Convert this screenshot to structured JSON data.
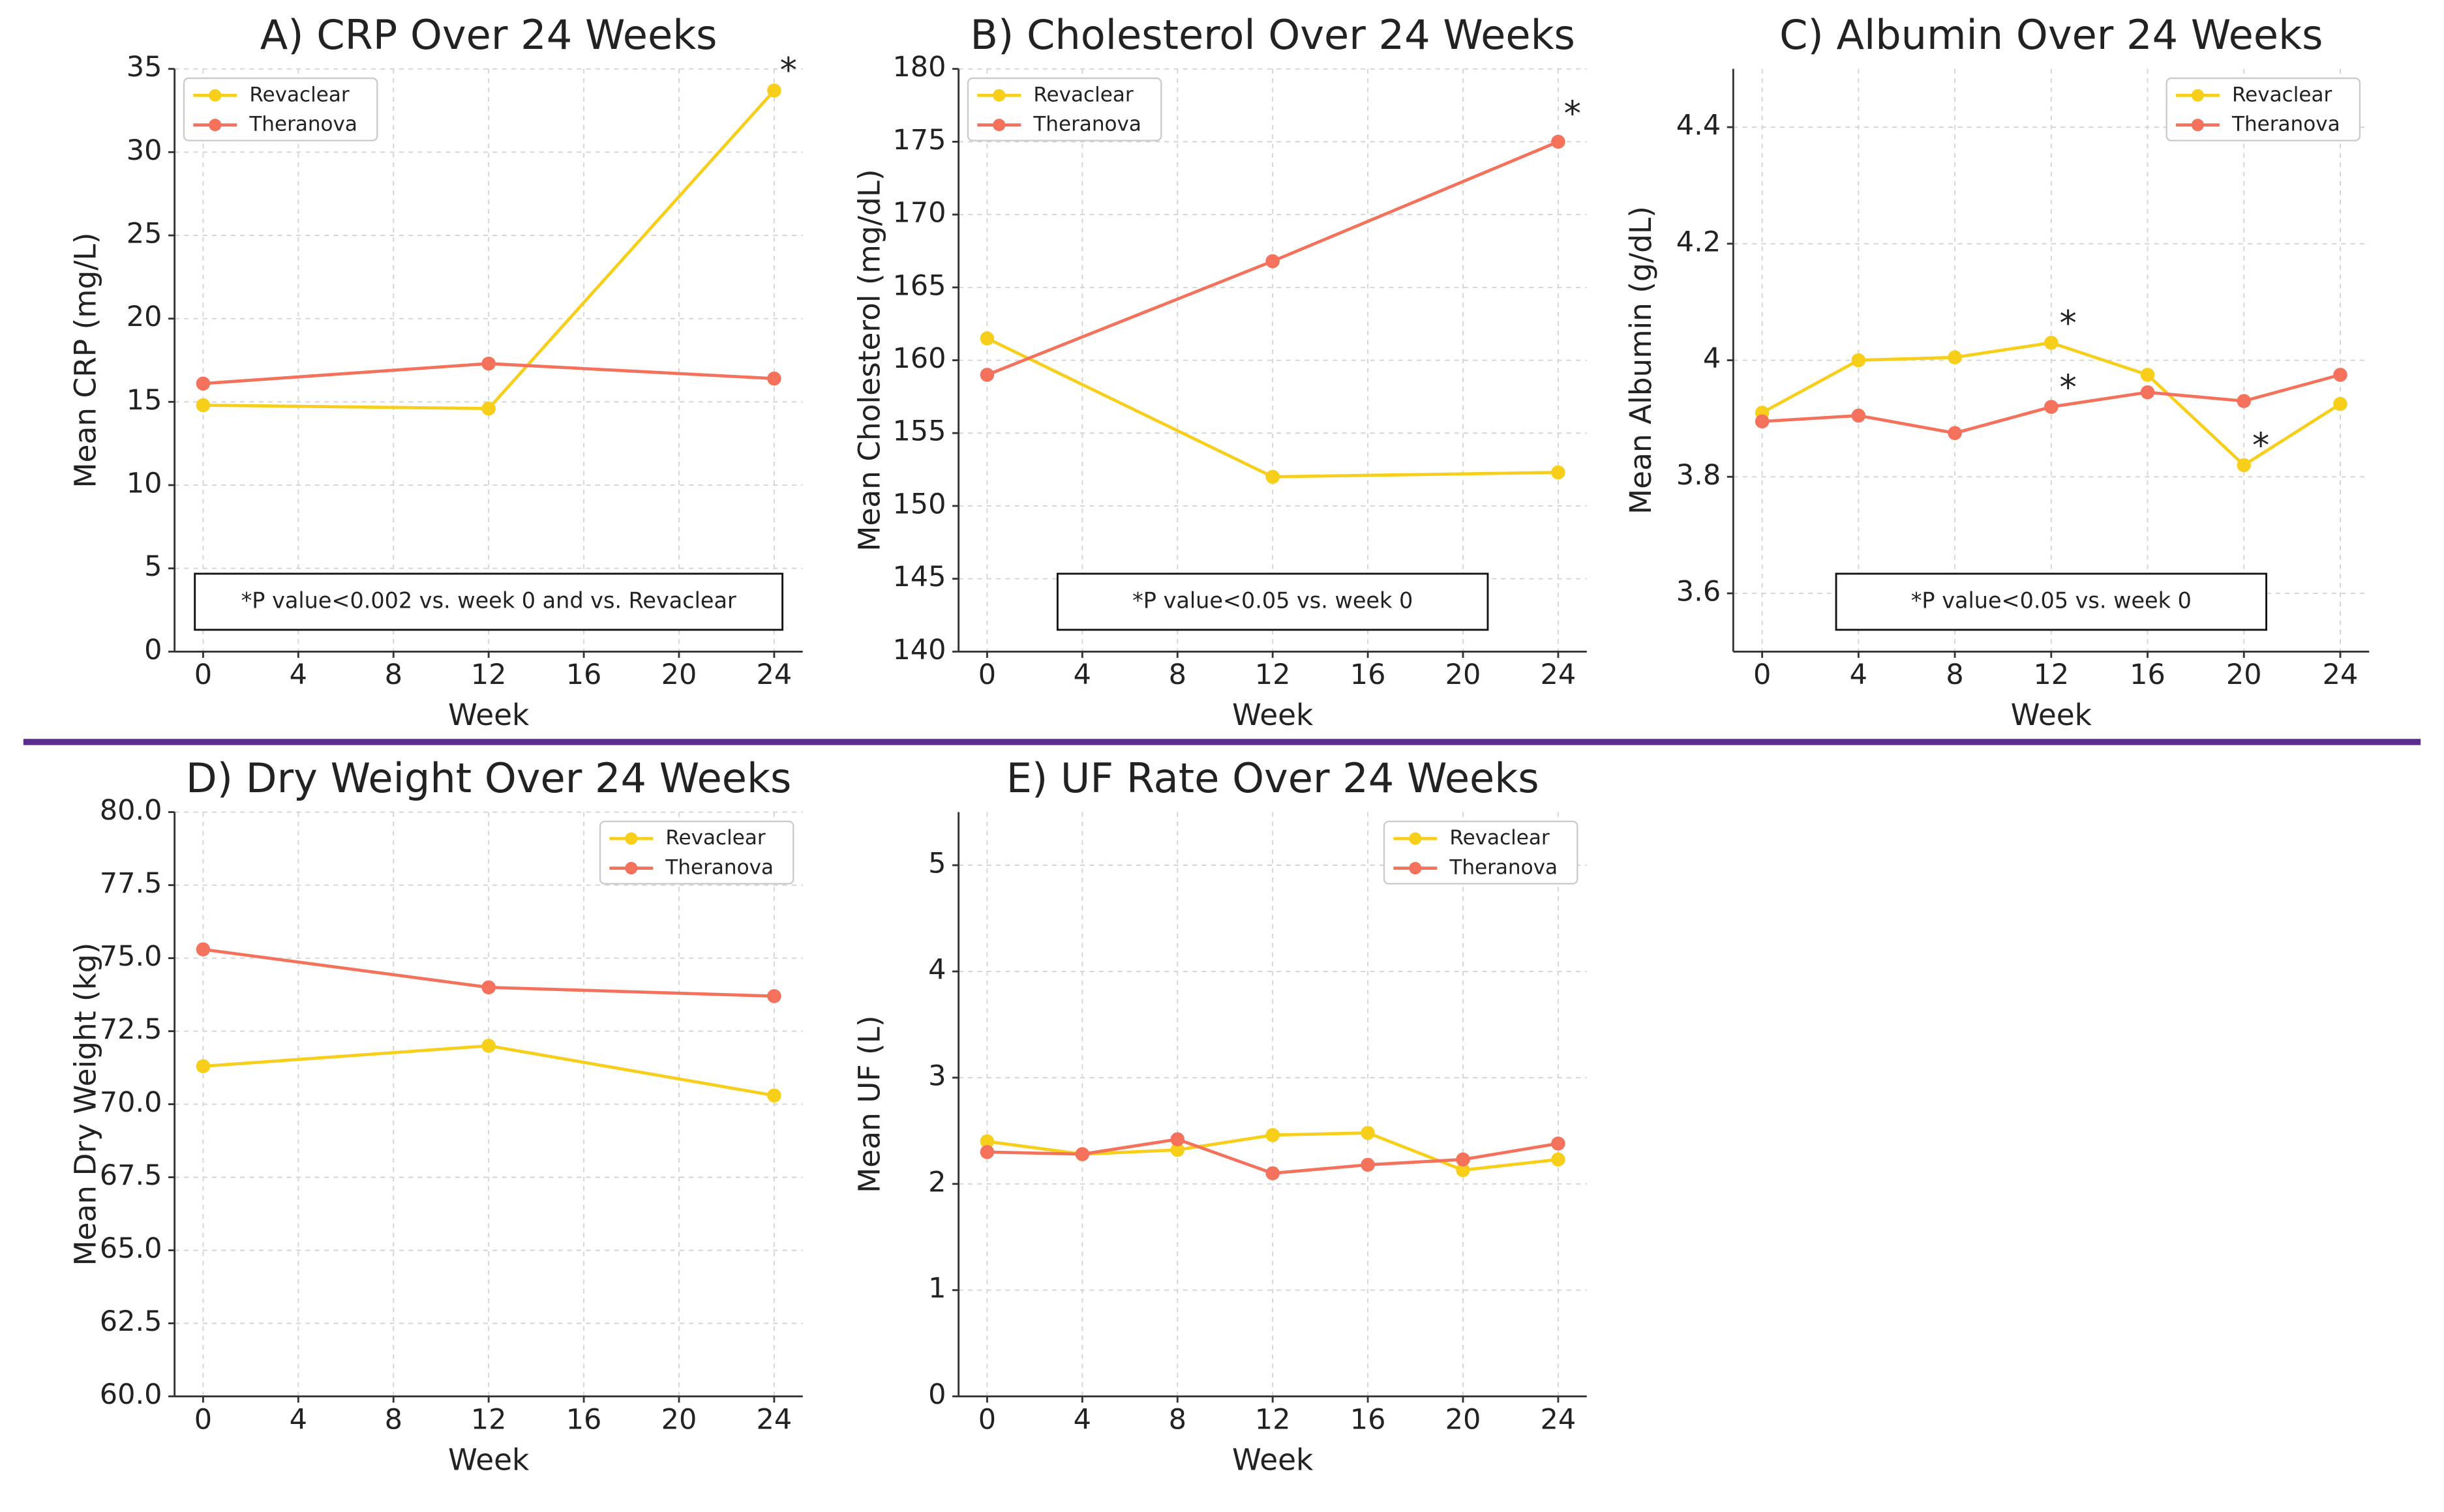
{
  "chart_data": [
    {
      "type": "line",
      "title": "A) CRP Over 24 Weeks",
      "xlabel": "Week",
      "ylabel": "Mean CRP (mg/L)",
      "x": [
        0,
        12,
        24
      ],
      "series": [
        {
          "name": "Revaclear",
          "color": "#f7cf1b",
          "values": [
            14.8,
            14.6,
            33.7
          ]
        },
        {
          "name": "Theranova",
          "color": "#f4725c",
          "values": [
            16.1,
            17.3,
            16.4
          ]
        }
      ],
      "xlim": [
        -1.2,
        25.2
      ],
      "xticks": [
        0,
        4,
        8,
        12,
        16,
        20,
        24
      ],
      "ylim": [
        0,
        35
      ],
      "yticks": [
        0,
        5,
        10,
        15,
        20,
        25,
        30,
        35
      ],
      "grid": true,
      "legend": "upper left",
      "note": "*P value<0.002 vs. week 0 and vs. Revaclear",
      "annotations": [
        {
          "text": "*",
          "x": 24.6,
          "y": 34.8,
          "color": "#f7b21b"
        }
      ]
    },
    {
      "type": "line",
      "title": "B) Cholesterol Over 24 Weeks",
      "xlabel": "Week",
      "ylabel": "Mean Cholesterol (mg/dL)",
      "x": [
        0,
        12,
        24
      ],
      "series": [
        {
          "name": "Revaclear",
          "color": "#f7cf1b",
          "values": [
            161.5,
            152,
            152.3
          ]
        },
        {
          "name": "Theranova",
          "color": "#f4725c",
          "values": [
            159,
            166.8,
            175
          ]
        }
      ],
      "xlim": [
        -1.2,
        25.2
      ],
      "xticks": [
        0,
        4,
        8,
        12,
        16,
        20,
        24
      ],
      "ylim": [
        140,
        180
      ],
      "yticks": [
        140,
        145,
        150,
        155,
        160,
        165,
        170,
        175,
        180
      ],
      "grid": true,
      "legend": "upper left",
      "note": "*P value<0.05 vs. week 0",
      "annotations": [
        {
          "text": "*",
          "x": 24.6,
          "y": 176.8,
          "color": "#e8202a"
        }
      ]
    },
    {
      "type": "line",
      "title": "C) Albumin Over 24 Weeks",
      "xlabel": "Week",
      "ylabel": "Mean Albumin (g/dL)",
      "x": [
        0,
        4,
        8,
        12,
        16,
        20,
        24
      ],
      "series": [
        {
          "name": "Revaclear",
          "color": "#f7cf1b",
          "values": [
            3.91,
            4.0,
            4.005,
            4.03,
            3.975,
            3.82,
            3.925
          ]
        },
        {
          "name": "Theranova",
          "color": "#f4725c",
          "values": [
            3.895,
            3.905,
            3.875,
            3.92,
            3.945,
            3.93,
            3.975
          ]
        }
      ],
      "xlim": [
        -1.2,
        25.2
      ],
      "xticks": [
        0,
        4,
        8,
        12,
        16,
        20,
        24
      ],
      "ylim": [
        3.5,
        4.5
      ],
      "yticks": [
        3.6,
        3.8,
        4.0,
        4.2,
        4.4
      ],
      "grid": true,
      "legend": "upper right",
      "note": "*P value<0.05 vs. week 0",
      "annotations": [
        {
          "text": "*",
          "x": 12.7,
          "y": 4.06,
          "color": "#f7b21b"
        },
        {
          "text": "*",
          "x": 12.7,
          "y": 3.95,
          "color": "#e8202a"
        },
        {
          "text": "*",
          "x": 20.7,
          "y": 3.85,
          "color": "#f7b21b"
        }
      ]
    },
    {
      "type": "line",
      "title": "D) Dry Weight Over 24 Weeks",
      "xlabel": "Week",
      "ylabel": "Mean Dry Weight (kg)",
      "x": [
        0,
        12,
        24
      ],
      "series": [
        {
          "name": "Revaclear",
          "color": "#f7cf1b",
          "values": [
            71.3,
            72,
            70.3
          ]
        },
        {
          "name": "Theranova",
          "color": "#f4725c",
          "values": [
            75.3,
            74,
            73.7
          ]
        }
      ],
      "xlim": [
        -1.2,
        25.2
      ],
      "xticks": [
        0,
        4,
        8,
        12,
        16,
        20,
        24
      ],
      "ylim": [
        60,
        80
      ],
      "yticks": [
        {
          "value": 60,
          "label": "60.0"
        },
        62.5,
        {
          "value": 65,
          "label": "65.0"
        },
        67.5,
        {
          "value": 70,
          "label": "70.0"
        },
        72.5,
        {
          "value": 75,
          "label": "75.0"
        },
        77.5,
        {
          "value": 80,
          "label": "80.0"
        }
      ],
      "grid": true,
      "legend": "upper right"
    },
    {
      "type": "line",
      "title": "E) UF Rate Over 24 Weeks",
      "xlabel": "Week",
      "ylabel": "Mean UF (L)",
      "x": [
        0,
        4,
        8,
        12,
        16,
        20,
        24
      ],
      "series": [
        {
          "name": "Revaclear",
          "color": "#f7cf1b",
          "values": [
            2.4,
            2.28,
            2.32,
            2.46,
            2.48,
            2.13,
            2.23
          ]
        },
        {
          "name": "Theranova",
          "color": "#f4725c",
          "values": [
            2.3,
            2.28,
            2.42,
            2.1,
            2.18,
            2.23,
            2.38
          ]
        }
      ],
      "xlim": [
        -1.2,
        25.2
      ],
      "xticks": [
        0,
        4,
        8,
        12,
        16,
        20,
        24
      ],
      "ylim": [
        0,
        5.5
      ],
      "yticks": [
        0,
        1,
        2,
        3,
        4,
        5
      ],
      "grid": true,
      "legend": "upper right"
    }
  ]
}
